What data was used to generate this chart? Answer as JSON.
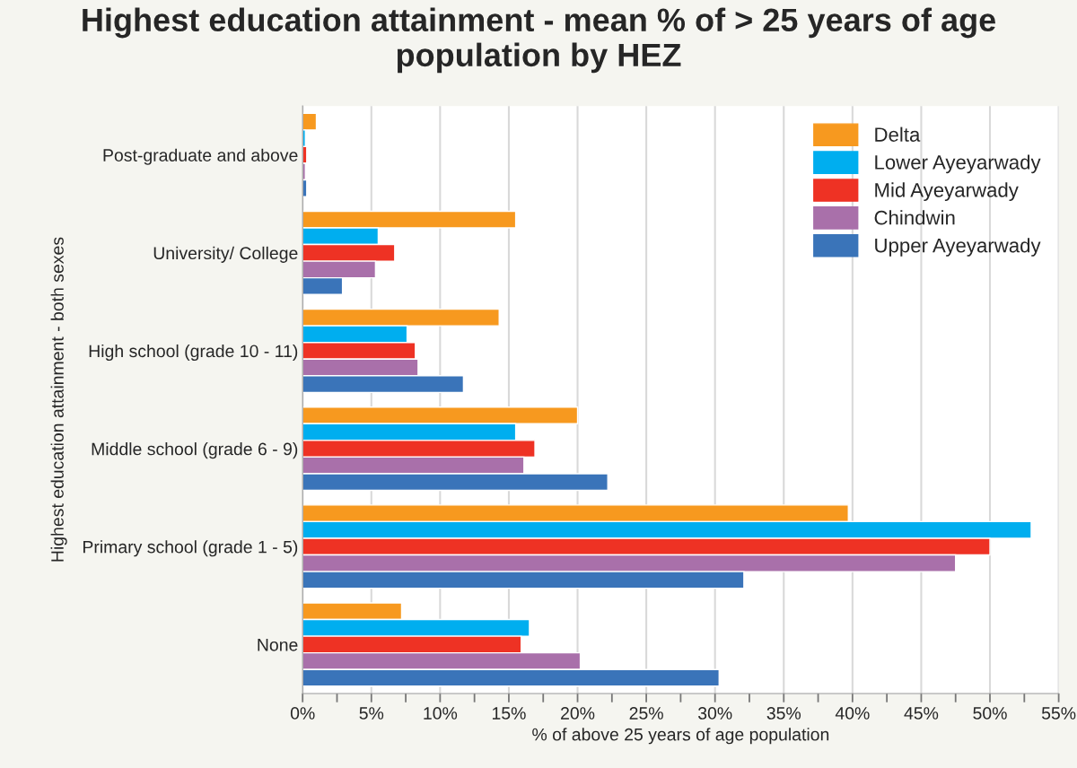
{
  "chart_data": {
    "type": "bar",
    "orientation": "horizontal",
    "title": "Highest education attainment - mean % of > 25 years of age population by HEZ",
    "xlabel": "% of above 25 years of age population",
    "ylabel": "Highest education attainment - both sexes",
    "categories": [
      "Post-graduate and above",
      "University/ College",
      "High school (grade 10 - 11)",
      "Middle school (grade 6 - 9)",
      "Primary school (grade 1 - 5)",
      "None"
    ],
    "series": [
      {
        "name": "Delta",
        "color": "#f7991f",
        "values": [
          1.0,
          15.5,
          14.3,
          20.0,
          39.7,
          7.2
        ]
      },
      {
        "name": "Lower Ayeyarwady",
        "color": "#00aeef",
        "values": [
          0.2,
          5.5,
          7.6,
          15.5,
          53.0,
          16.5
        ]
      },
      {
        "name": "Mid Ayeyarwady",
        "color": "#ee3224",
        "values": [
          0.3,
          6.7,
          8.2,
          16.9,
          50.0,
          15.9
        ]
      },
      {
        "name": "Chindwin",
        "color": "#a970aa",
        "values": [
          0.2,
          5.3,
          8.4,
          16.1,
          47.5,
          20.2
        ]
      },
      {
        "name": "Upper Ayeyarwady",
        "color": "#3a74b9",
        "values": [
          0.3,
          2.9,
          11.7,
          22.2,
          32.1,
          30.3
        ]
      }
    ],
    "xlim": [
      0,
      55
    ],
    "xticks": [
      {
        "value": 0,
        "label": "0%"
      },
      {
        "value": 2.5,
        "label": null
      },
      {
        "value": 5,
        "label": "5%"
      },
      {
        "value": 7.5,
        "label": null
      },
      {
        "value": 10,
        "label": "10%"
      },
      {
        "value": 12.5,
        "label": null
      },
      {
        "value": 15,
        "label": "15%"
      },
      {
        "value": 17.5,
        "label": null
      },
      {
        "value": 20,
        "label": "20%"
      },
      {
        "value": 22.5,
        "label": null
      },
      {
        "value": 25,
        "label": "25%"
      },
      {
        "value": 27.5,
        "label": null
      },
      {
        "value": 30,
        "label": "30%"
      },
      {
        "value": 32.5,
        "label": null
      },
      {
        "value": 35,
        "label": "35%"
      },
      {
        "value": 37.5,
        "label": null
      },
      {
        "value": 40,
        "label": "40%"
      },
      {
        "value": 42.5,
        "label": null
      },
      {
        "value": 45,
        "label": "45%"
      },
      {
        "value": 47.5,
        "label": null
      },
      {
        "value": 50,
        "label": "50%"
      },
      {
        "value": 52.5,
        "label": null
      },
      {
        "value": 55,
        "label": "55%"
      }
    ],
    "grid": "x",
    "legend": "top right"
  }
}
